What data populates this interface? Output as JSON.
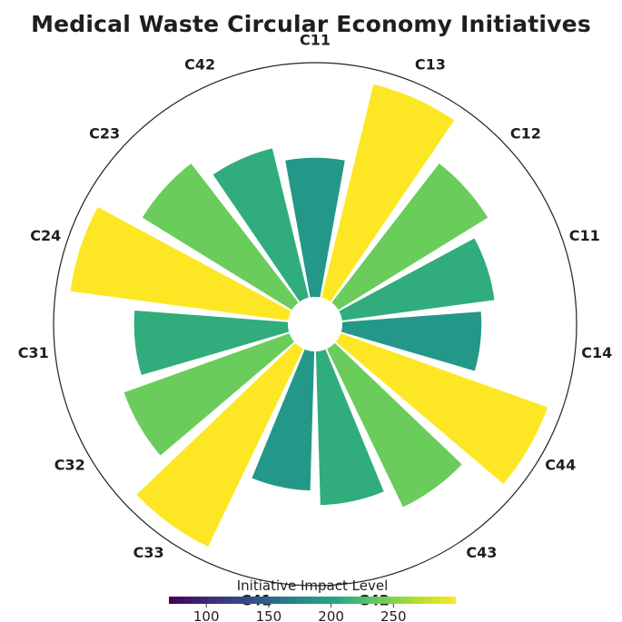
{
  "chart_data": {
    "type": "bar",
    "subtype": "polar",
    "title": "Medical Waste Circular Economy Initiatives",
    "categories": [
      "C11",
      "C13",
      "C12",
      "C11",
      "C14",
      "C44",
      "C43",
      "C42",
      "C41",
      "C33",
      "C32",
      "C31",
      "C24",
      "C23",
      "C42"
    ],
    "values": [
      190,
      300,
      240,
      210,
      190,
      300,
      240,
      210,
      190,
      300,
      240,
      210,
      300,
      240,
      210
    ],
    "colorbar": {
      "label": "Initiative Impact Level",
      "ticks": [
        100,
        150,
        200,
        250
      ],
      "range": [
        70,
        300
      ],
      "colormap": "viridis"
    },
    "grid": false,
    "legend": "none"
  }
}
